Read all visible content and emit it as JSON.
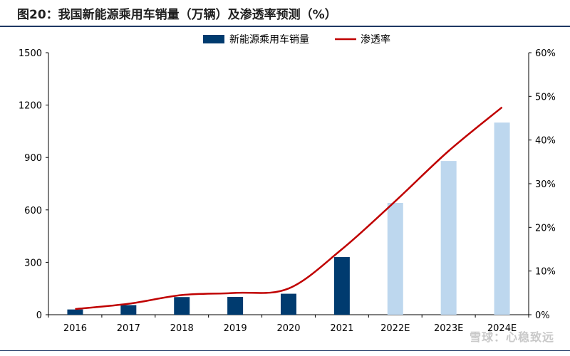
{
  "title": "图20：我国新能源乘用车销量（万辆）及渗透率预测（%）",
  "watermark": "雪球：心稳致远",
  "chart_data": {
    "type": "bar+line",
    "categories": [
      "2016",
      "2017",
      "2018",
      "2019",
      "2020",
      "2021",
      "2022E",
      "2023E",
      "2024E"
    ],
    "series": [
      {
        "name": "新能源乘用车销量",
        "kind": "bar",
        "axis": "left",
        "values": [
          30,
          55,
          101,
          102,
          120,
          330,
          640,
          880,
          1100
        ],
        "colors": [
          "#003b6f",
          "#003b6f",
          "#003b6f",
          "#003b6f",
          "#003b6f",
          "#003b6f",
          "#bdd7ee",
          "#bdd7ee",
          "#bdd7ee"
        ]
      },
      {
        "name": "渗透率",
        "kind": "line",
        "axis": "right",
        "values": [
          1.3,
          2.5,
          4.5,
          5.0,
          6.0,
          15.0,
          26.0,
          37.5,
          47.5
        ],
        "color": "#c00000"
      }
    ],
    "left_axis": {
      "min": 0,
      "max": 1500,
      "ticks": [
        0,
        300,
        600,
        900,
        1200,
        1500
      ],
      "label": ""
    },
    "right_axis": {
      "min": 0,
      "max": 60,
      "ticks": [
        0,
        10,
        20,
        30,
        40,
        50,
        60
      ],
      "tick_labels": [
        "0%",
        "10%",
        "20%",
        "30%",
        "40%",
        "50%",
        "60%"
      ],
      "label": ""
    },
    "legend": {
      "position": "top-center",
      "items": [
        "新能源乘用车销量",
        "渗透率"
      ]
    },
    "grid": false
  }
}
